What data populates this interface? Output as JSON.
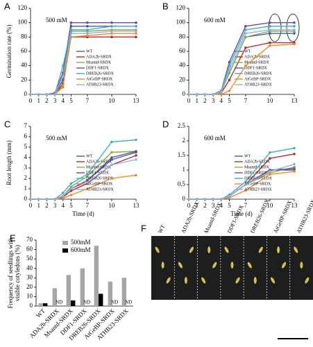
{
  "chart_data": [
    {
      "type": "line",
      "panel": "A",
      "annotation": "500 mM",
      "y_label": "Germination rate (%)",
      "x": [
        0,
        1,
        2,
        3,
        4,
        5,
        7,
        10,
        13
      ],
      "xlim": [
        0,
        13
      ],
      "xticks": [
        0,
        1,
        2,
        3,
        4,
        5,
        7,
        10,
        13
      ],
      "ylim": [
        0,
        120
      ],
      "yticks": [
        0,
        20,
        40,
        60,
        80,
        100,
        120
      ],
      "series": [
        {
          "name": "WT",
          "color": "#3a5ea8",
          "values": [
            0,
            0,
            0,
            0,
            20,
            95,
            95,
            95,
            95
          ]
        },
        {
          "name": "ADA2b-SRDX",
          "color": "#b03030",
          "values": [
            0,
            0,
            0,
            0,
            15,
            80,
            80,
            80,
            80
          ]
        },
        {
          "name": "Msantd-SRDX",
          "color": "#8aae3a",
          "values": [
            0,
            0,
            0,
            0,
            10,
            88,
            88,
            90,
            90
          ]
        },
        {
          "name": "DDF1-SRDX",
          "color": "#6a4a9a",
          "values": [
            0,
            0,
            0,
            2,
            30,
            100,
            100,
            100,
            100
          ]
        },
        {
          "name": "DREB26-SRDX",
          "color": "#3ab0c8",
          "values": [
            0,
            0,
            0,
            0,
            40,
            90,
            90,
            95,
            95
          ]
        },
        {
          "name": "AtGeBP-SRDX",
          "color": "#f08a24",
          "values": [
            0,
            0,
            0,
            0,
            12,
            80,
            82,
            85,
            85
          ]
        },
        {
          "name": "ATHB23-SRDX",
          "color": "#8fb0e0",
          "values": [
            0,
            0,
            0,
            0,
            25,
            85,
            85,
            88,
            88
          ]
        }
      ]
    },
    {
      "type": "line",
      "panel": "B",
      "annotation": "600 mM",
      "x": [
        0,
        1,
        2,
        3,
        4,
        5,
        7,
        10,
        13
      ],
      "xlim": [
        0,
        13
      ],
      "xticks": [
        0,
        1,
        2,
        3,
        4,
        5,
        7,
        10,
        13
      ],
      "ylim": [
        0,
        120
      ],
      "yticks": [
        0,
        20,
        40,
        60,
        80,
        100,
        120
      ],
      "series": [
        {
          "name": "WT",
          "color": "#3a5ea8",
          "values": [
            0,
            0,
            0,
            0,
            5,
            30,
            80,
            85,
            85
          ]
        },
        {
          "name": "ADA2b-SRDX",
          "color": "#b03030",
          "values": [
            0,
            0,
            0,
            0,
            2,
            20,
            65,
            72,
            72
          ]
        },
        {
          "name": "Msantd-SRDX",
          "color": "#8aae3a",
          "values": [
            0,
            0,
            0,
            0,
            3,
            30,
            80,
            88,
            88
          ]
        },
        {
          "name": "DDF1-SRDX",
          "color": "#6a4a9a",
          "values": [
            0,
            0,
            0,
            0,
            5,
            45,
            95,
            100,
            100
          ]
        },
        {
          "name": "DREB26-SRDX",
          "color": "#3ab0c8",
          "values": [
            0,
            0,
            0,
            0,
            5,
            40,
            90,
            95,
            95
          ]
        },
        {
          "name": "AtGeBP-SRDX",
          "color": "#f08a24",
          "values": [
            0,
            0,
            0,
            0,
            0,
            5,
            40,
            68,
            70
          ]
        },
        {
          "name": "ATHB23-SRDX",
          "color": "#8fb0e0",
          "values": [
            0,
            0,
            0,
            0,
            3,
            35,
            85,
            90,
            90
          ]
        }
      ]
    },
    {
      "type": "line",
      "panel": "C",
      "annotation": "500 mM",
      "y_label": "Root length (mm)",
      "x_label": "Time (d)",
      "x": [
        0,
        1,
        2,
        3,
        4,
        5,
        7,
        10,
        13
      ],
      "xlim": [
        0,
        13
      ],
      "xticks": [
        0,
        1,
        2,
        3,
        4,
        5,
        7,
        10,
        13
      ],
      "ylim": [
        0,
        7
      ],
      "yticks": [
        0,
        1,
        2,
        3,
        4,
        5,
        6,
        7
      ],
      "series": [
        {
          "name": "WT",
          "color": "#3a5ea8",
          "values": [
            0,
            0,
            0,
            0,
            0.3,
            1,
            1.8,
            3.8,
            4.5
          ]
        },
        {
          "name": "ADA2b-SRDX",
          "color": "#b03030",
          "values": [
            0,
            0,
            0,
            0,
            0.2,
            0.8,
            1.5,
            3.3,
            4.2
          ]
        },
        {
          "name": "Msantd-SRDX",
          "color": "#8aae3a",
          "values": [
            0,
            0,
            0,
            0,
            0.3,
            1.2,
            2.2,
            4.5,
            4.6
          ]
        },
        {
          "name": "DDF1-SRDX",
          "color": "#6a4a9a",
          "values": [
            0,
            0,
            0,
            0,
            0.3,
            1,
            1.8,
            4,
            4.6
          ]
        },
        {
          "name": "DREB26-SRDX",
          "color": "#3ab0c8",
          "values": [
            0,
            0,
            0,
            0,
            0.6,
            1.5,
            2.4,
            5.5,
            5.7
          ]
        },
        {
          "name": "AtGeBP-SRDX",
          "color": "#f08a24",
          "values": [
            0,
            0,
            0,
            0,
            0.1,
            0.4,
            1,
            2,
            2.3
          ]
        },
        {
          "name": "ATHB23-SRDX",
          "color": "#8fb0e0",
          "values": [
            0,
            0,
            0,
            0,
            0.3,
            1,
            1.6,
            3.3,
            3.8
          ]
        }
      ]
    },
    {
      "type": "line",
      "panel": "D",
      "annotation": "600 mM",
      "x_label": "Time (d)",
      "x": [
        0,
        1,
        2,
        3,
        4,
        5,
        7,
        10,
        13
      ],
      "xlim": [
        0,
        13
      ],
      "xticks": [
        0,
        1,
        2,
        3,
        4,
        5,
        7,
        10,
        13
      ],
      "ylim": [
        0,
        2.5
      ],
      "yticks": [
        0,
        0.5,
        1,
        1.5,
        2,
        2.5
      ],
      "series": [
        {
          "name": "WT",
          "color": "#3a5ea8",
          "values": [
            0,
            0,
            0,
            0,
            0,
            0.1,
            0.5,
            1,
            1
          ]
        },
        {
          "name": "ADA2b-SRDX",
          "color": "#b03030",
          "values": [
            0,
            0,
            0,
            0,
            0,
            0.1,
            0.5,
            1.4,
            1.55
          ]
        },
        {
          "name": "Msantd-SRDX",
          "color": "#8aae3a",
          "values": [
            0,
            0,
            0,
            0,
            0,
            0.1,
            0.5,
            0.9,
            1.1
          ]
        },
        {
          "name": "DDF1-SRDX",
          "color": "#6a4a9a",
          "values": [
            0,
            0,
            0,
            0,
            0,
            0.1,
            0.5,
            1,
            1.05
          ]
        },
        {
          "name": "DREB26-SRDX",
          "color": "#3ab0c8",
          "values": [
            0,
            0,
            0,
            0,
            0,
            0.15,
            0.6,
            1.6,
            1.75
          ]
        },
        {
          "name": "AtGeBP-SRDX",
          "color": "#f08a24",
          "values": [
            0,
            0,
            0,
            0,
            0,
            0.05,
            0.3,
            0.85,
            0.95
          ]
        },
        {
          "name": "ATHB23-SRDX",
          "color": "#8fb0e0",
          "values": [
            0,
            0,
            0,
            0,
            0,
            0.1,
            0.5,
            0.95,
            1.2
          ]
        }
      ]
    },
    {
      "type": "bar",
      "panel": "E",
      "y_label": [
        "Frequency of seedlings with",
        "visible cotyledons (%)"
      ],
      "categories": [
        "WT",
        "ADA2b-SRDX",
        "Msantd-SRDX",
        "DDF1-SRDX",
        "DREB26-SRDX",
        "AtGeBP-SRDX",
        "ATHB23-SRDX"
      ],
      "ylim": [
        0,
        70
      ],
      "yticks": [
        0,
        10,
        20,
        30,
        40,
        50,
        60,
        70
      ],
      "missing_label": "ND",
      "series": [
        {
          "name": "500mM",
          "color": "#a6a6a6",
          "values": [
            3,
            19,
            33,
            40,
            64,
            26,
            30
          ]
        },
        {
          "name": "600mM",
          "color": "#000000",
          "values": [
            3,
            null,
            6,
            null,
            13,
            null,
            null
          ]
        }
      ]
    }
  ],
  "panel_f": {
    "label": "F",
    "columns": [
      "WT",
      "ADA2b-SRDX",
      "Msantd-SRDX",
      "DDF1-SRDX",
      "DREB26-SRDX",
      "AtGeBP-SRDX",
      "ATHB23-SRDX"
    ]
  }
}
